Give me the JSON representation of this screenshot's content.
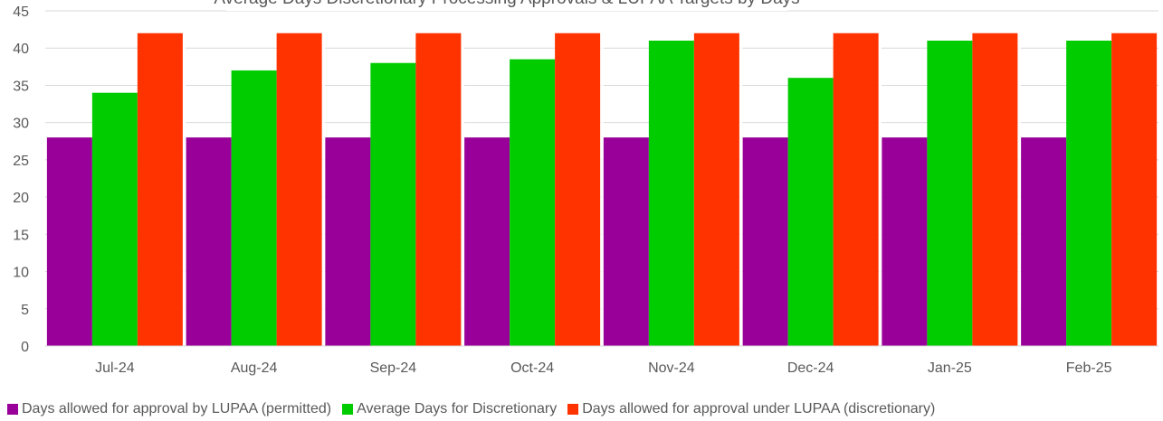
{
  "chart_data": {
    "type": "bar",
    "title": "Average Days Discretionary Processing Approvals & LUPAA Targets by Days",
    "categories": [
      "Jul-24",
      "Aug-24",
      "Sep-24",
      "Oct-24",
      "Nov-24",
      "Dec-24",
      "Jan-25",
      "Feb-25"
    ],
    "series": [
      {
        "name": "Days allowed for approval by LUPAA (permitted)",
        "color": "#990099",
        "values": [
          28,
          28,
          28,
          28,
          28,
          28,
          28,
          28
        ]
      },
      {
        "name": "Average Days for Discretionary",
        "color": "#00cc00",
        "values": [
          34,
          37,
          38,
          38.5,
          41,
          36,
          41,
          41
        ]
      },
      {
        "name": "Days allowed for approval under LUPAA (discretionary)",
        "color": "#ff3300",
        "values": [
          42,
          42,
          42,
          42,
          42,
          42,
          42,
          42
        ]
      }
    ],
    "ylim": [
      0,
      45
    ],
    "yticks": [
      0,
      5,
      10,
      15,
      20,
      25,
      30,
      35,
      40,
      45
    ],
    "grid": true,
    "legend_position": "bottom"
  }
}
